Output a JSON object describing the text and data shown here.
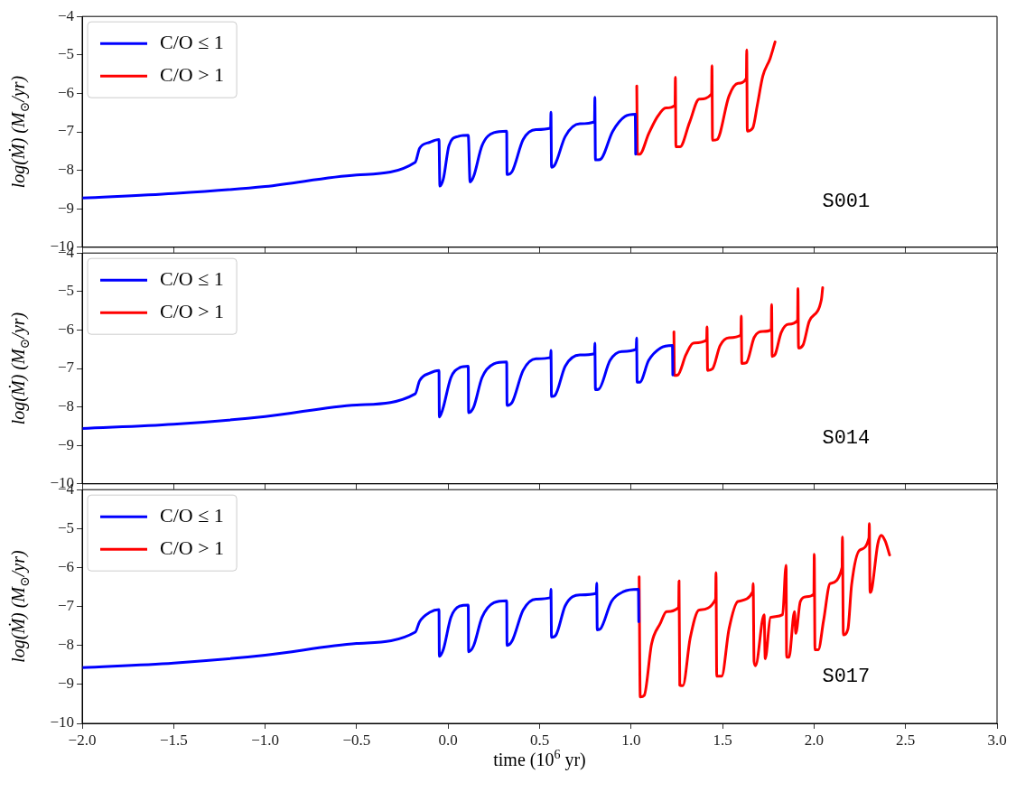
{
  "chart_data": [
    {
      "type": "line",
      "ylabel": "log(Ṁ) (M$_{⊙}$/yr)",
      "annotations": [
        "S001"
      ],
      "legend": "top left",
      "tick_labels": "y",
      "xlim": [
        -2,
        3
      ],
      "ylim": [
        -10,
        -4
      ],
      "yticks": [
        -10,
        -9,
        -8,
        -7,
        -6,
        -5,
        -4
      ],
      "xticks": [
        -2,
        -1.5,
        -1,
        -0.5,
        0,
        0.5,
        1,
        1.5,
        2,
        2.5,
        3
      ],
      "series": [
        {
          "name": "C/O ≤ 1",
          "color": "#0000ff",
          "x": [
            -2,
            -1.5,
            -1,
            -0.5,
            -0.18,
            -0.156,
            -0.1,
            -0.05,
            -0.045,
            -0.026,
            0.005,
            0.054,
            0.11,
            0.12,
            0.14,
            0.185,
            0.25,
            0.32,
            0.322,
            0.35,
            0.41,
            0.48,
            0.56,
            0.562,
            0.565,
            0.584,
            0.64,
            0.72,
            0.8,
            0.802,
            0.805,
            0.83,
            0.9,
            0.966,
            1.023,
            1.025
          ],
          "values": [
            -8.72,
            -8.6,
            -8.42,
            -8.12,
            -7.79,
            -7.43,
            -7.27,
            -7.2,
            -8.41,
            -8.22,
            -7.35,
            -7.12,
            -7.09,
            -8.3,
            -8.15,
            -7.36,
            -7.02,
            -6.98,
            -8.11,
            -8.03,
            -7.2,
            -6.94,
            -6.9,
            -6.49,
            -7.92,
            -7.85,
            -7.12,
            -6.79,
            -6.74,
            -6.1,
            -7.73,
            -7.72,
            -6.98,
            -6.6,
            -6.54,
            -7.58
          ]
        },
        {
          "name": "C/O > 1",
          "color": "#ff0000",
          "x": [
            1.031,
            1.035,
            1.047,
            1.096,
            1.145,
            1.19,
            1.24,
            1.242,
            1.245,
            1.267,
            1.32,
            1.372,
            1.44,
            1.442,
            1.445,
            1.47,
            1.535,
            1.584,
            1.63,
            1.632,
            1.635,
            1.665,
            1.69,
            1.72,
            1.76,
            1.787
          ],
          "values": [
            -5.81,
            -7.58,
            -7.58,
            -7.05,
            -6.6,
            -6.38,
            -6.31,
            -5.58,
            -7.39,
            -7.39,
            -6.75,
            -6.15,
            -6.01,
            -5.28,
            -7.22,
            -7.2,
            -6.07,
            -5.74,
            -5.61,
            -4.87,
            -6.98,
            -6.9,
            -6.3,
            -5.55,
            -5.09,
            -4.66
          ]
        }
      ]
    },
    {
      "type": "line",
      "ylabel": "log(Ṁ) (M$_{⊙}$/yr)",
      "annotations": [
        "S014"
      ],
      "legend": "top left",
      "tick_labels": "y",
      "xlim": [
        -2,
        3
      ],
      "ylim": [
        -10,
        -4
      ],
      "yticks": [
        -10,
        -9,
        -8,
        -7,
        -6,
        -5,
        -4
      ],
      "xticks": [
        -2,
        -1.5,
        -1,
        -0.5,
        0,
        0.5,
        1,
        1.5,
        2,
        2.5,
        3
      ],
      "series": [
        {
          "name": "C/O ≤ 1",
          "color": "#0000ff",
          "x": [
            -2,
            -1.5,
            -1,
            -0.5,
            -0.18,
            -0.156,
            -0.1,
            -0.05,
            -0.048,
            -0.03,
            0.015,
            0.063,
            0.11,
            0.112,
            0.14,
            0.185,
            0.25,
            0.32,
            0.322,
            0.35,
            0.41,
            0.48,
            0.56,
            0.562,
            0.565,
            0.584,
            0.64,
            0.72,
            0.8,
            0.802,
            0.805,
            0.823,
            0.885,
            0.95,
            1.028,
            1.03,
            1.033,
            1.047,
            1.096,
            1.16,
            1.226,
            1.228
          ],
          "values": [
            -8.56,
            -8.45,
            -8.25,
            -7.95,
            -7.66,
            -7.32,
            -7.12,
            -7.05,
            -8.26,
            -8.07,
            -7.24,
            -6.98,
            -6.94,
            -8.15,
            -8.0,
            -7.24,
            -6.88,
            -6.83,
            -7.96,
            -7.88,
            -7.05,
            -6.75,
            -6.71,
            -6.53,
            -7.73,
            -7.7,
            -6.94,
            -6.65,
            -6.62,
            -6.34,
            -7.55,
            -7.54,
            -6.79,
            -6.56,
            -6.5,
            -6.21,
            -7.36,
            -7.36,
            -6.79,
            -6.47,
            -6.4,
            -7.17
          ]
        },
        {
          "name": "C/O > 1",
          "color": "#ff0000",
          "x": [
            1.234,
            1.237,
            1.255,
            1.3,
            1.34,
            1.413,
            1.415,
            1.418,
            1.445,
            1.486,
            1.535,
            1.6,
            1.602,
            1.605,
            1.63,
            1.673,
            1.72,
            1.766,
            1.768,
            1.771,
            1.787,
            1.82,
            1.86,
            1.91,
            1.912,
            1.915,
            1.94,
            1.974,
            2.04,
            2.047
          ],
          "values": [
            -6.05,
            -7.18,
            -7.17,
            -6.64,
            -6.34,
            -6.26,
            -5.92,
            -7.05,
            -7.01,
            -6.41,
            -6.2,
            -6.13,
            -5.64,
            -6.87,
            -6.85,
            -6.19,
            -6.04,
            -6.0,
            -5.34,
            -6.69,
            -6.64,
            -6.07,
            -5.85,
            -5.75,
            -4.92,
            -6.47,
            -6.39,
            -5.77,
            -5.21,
            -4.9
          ]
        }
      ]
    },
    {
      "type": "line",
      "ylabel": "log(Ṁ) (M$_{⊙}$/yr)",
      "xlabel": "time (10$^{6}$ yr)",
      "annotations": [
        "S017"
      ],
      "legend": "top left",
      "xlim": [
        -2,
        3
      ],
      "ylim": [
        -10,
        -4
      ],
      "yticks": [
        -10,
        -9,
        -8,
        -7,
        -6,
        -5,
        -4
      ],
      "xticks": [
        {
          "value": -2,
          "label": "−2.0"
        },
        {
          "value": -1.5,
          "label": "−1.5"
        },
        {
          "value": -1,
          "label": "−1.0"
        },
        {
          "value": -0.5,
          "label": "−0.5"
        },
        {
          "value": 0,
          "label": "0.0"
        },
        {
          "value": 0.5,
          "label": "0.5"
        },
        {
          "value": 1,
          "label": "1.0"
        },
        {
          "value": 1.5,
          "label": "1.5"
        },
        {
          "value": 2,
          "label": "2.0"
        },
        {
          "value": 2.5,
          "label": "2.5"
        },
        {
          "value": 3,
          "label": "3.0"
        }
      ],
      "series": [
        {
          "name": "C/O ≤ 1",
          "color": "#0000ff",
          "x": [
            -2,
            -1.5,
            -1,
            -0.5,
            -0.18,
            -0.156,
            -0.1,
            -0.05,
            -0.048,
            -0.026,
            0.015,
            0.063,
            0.11,
            0.112,
            0.14,
            0.185,
            0.25,
            0.32,
            0.322,
            0.35,
            0.41,
            0.48,
            0.56,
            0.562,
            0.565,
            0.59,
            0.64,
            0.72,
            0.81,
            0.812,
            0.815,
            0.833,
            0.893,
            0.958,
            1.04,
            1.042
          ],
          "values": [
            -8.57,
            -8.45,
            -8.25,
            -7.95,
            -7.66,
            -7.39,
            -7.15,
            -7.08,
            -8.28,
            -8.1,
            -7.28,
            -6.99,
            -6.96,
            -8.16,
            -8.0,
            -7.28,
            -6.9,
            -6.85,
            -8.0,
            -7.88,
            -7.09,
            -6.81,
            -6.77,
            -6.56,
            -7.79,
            -7.73,
            -6.98,
            -6.7,
            -6.66,
            -6.4,
            -7.6,
            -7.57,
            -6.87,
            -6.62,
            -6.56,
            -7.39
          ]
        },
        {
          "name": "C/O > 1",
          "color": "#ff0000",
          "x": [
            1.044,
            1.05,
            1.072,
            1.112,
            1.16,
            1.194,
            1.26,
            1.262,
            1.266,
            1.283,
            1.323,
            1.372,
            1.462,
            1.464,
            1.468,
            1.495,
            1.535,
            1.584,
            1.665,
            1.667,
            1.672,
            1.68,
            1.727,
            1.733,
            1.762,
            1.828,
            1.847,
            1.85,
            1.863,
            1.893,
            1.9,
            1.925,
            1.958,
            1.999,
            2.001,
            2.005,
            2.023,
            2.052,
            2.088,
            2.153,
            2.155,
            2.16,
            2.185,
            2.205,
            2.25,
            2.3,
            2.302,
            2.306,
            2.315,
            2.348,
            2.367,
            2.389,
            2.413
          ],
          "values": [
            -6.24,
            -9.32,
            -9.28,
            -7.96,
            -7.43,
            -7.13,
            -7.02,
            -6.34,
            -9.02,
            -9.03,
            -7.81,
            -7.09,
            -6.81,
            -6.13,
            -8.79,
            -8.79,
            -7.58,
            -6.87,
            -6.62,
            -6.41,
            -8.41,
            -8.52,
            -7.21,
            -8.34,
            -7.28,
            -7.21,
            -5.94,
            -8.3,
            -8.3,
            -7.13,
            -7.69,
            -6.87,
            -6.75,
            -6.68,
            -5.66,
            -8.11,
            -8.11,
            -7.36,
            -6.41,
            -6.0,
            -5.21,
            -7.73,
            -7.58,
            -6.45,
            -5.55,
            -5.24,
            -4.87,
            -6.64,
            -6.57,
            -5.4,
            -5.17,
            -5.32,
            -5.68
          ]
        }
      ]
    }
  ]
}
